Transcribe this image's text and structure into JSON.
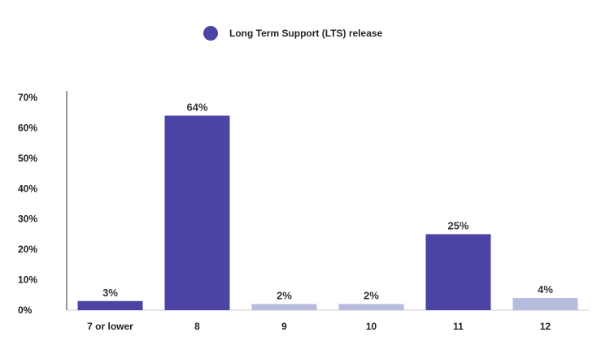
{
  "legend": {
    "label": "Long Term Support (LTS) release",
    "color": "#4B44A4"
  },
  "colors": {
    "lts": "#4B44A4",
    "non_lts": "#B7BCDF",
    "axis": "#333333"
  },
  "chart_data": {
    "type": "bar",
    "categories": [
      "7 or lower",
      "8",
      "9",
      "10",
      "11",
      "12"
    ],
    "values": [
      3,
      64,
      2,
      2,
      25,
      4
    ],
    "data_labels": [
      "3%",
      "64%",
      "2%",
      "2%",
      "25%",
      "4%"
    ],
    "lts": [
      true,
      true,
      false,
      false,
      true,
      false
    ],
    "ylim": [
      0,
      70
    ],
    "yticks": [
      "0%",
      "10%",
      "20%",
      "30%",
      "40%",
      "50%",
      "60%",
      "70%"
    ],
    "legend": [
      {
        "name": "Long Term Support (LTS) release"
      }
    ],
    "legend_position": "top-center",
    "grid": false
  }
}
